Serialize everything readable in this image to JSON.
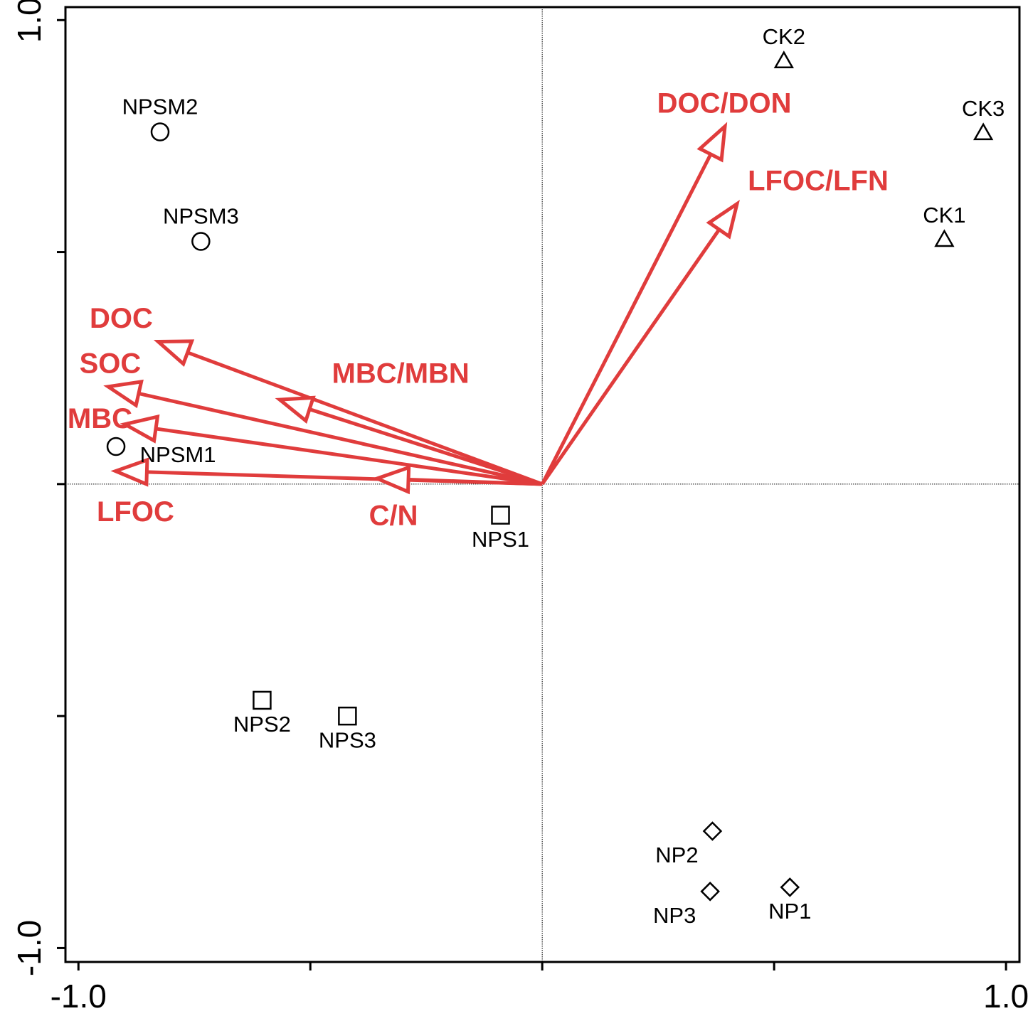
{
  "chart_data": {
    "type": "biplot",
    "xlim": [
      -1.028,
      1.029
    ],
    "ylim": [
      -1.03,
      1.028
    ],
    "xticks": [
      {
        "value": -1,
        "label": "-1.0"
      },
      {
        "value": -0.5,
        "label": null
      },
      {
        "value": 0,
        "label": null
      },
      {
        "value": 0.5,
        "label": null
      },
      {
        "value": 1,
        "label": "1.0"
      }
    ],
    "yticks": [
      {
        "value": -1,
        "label": "-1.0"
      },
      {
        "value": -0.5,
        "label": null
      },
      {
        "value": 0,
        "label": null
      },
      {
        "value": 0.5,
        "label": null
      },
      {
        "value": 1,
        "label": "1.0"
      }
    ],
    "arrow_color": "#e03c3c",
    "point_color": "#000000",
    "points": [
      {
        "label": "CK2",
        "x": 0.521,
        "y": 0.912,
        "marker": "triangle"
      },
      {
        "label": "CK3",
        "x": 0.951,
        "y": 0.757,
        "marker": "triangle"
      },
      {
        "label": "CK1",
        "x": 0.867,
        "y": 0.527,
        "marker": "triangle"
      },
      {
        "label": "NPSM2",
        "x": -0.824,
        "y": 0.759,
        "marker": "circle"
      },
      {
        "label": "NPSM3",
        "x": -0.736,
        "y": 0.523,
        "marker": "circle"
      },
      {
        "label": "NPSM1",
        "x": -0.919,
        "y": 0.081,
        "marker": "circle"
      },
      {
        "label": "NPS1",
        "x": -0.09,
        "y": -0.067,
        "marker": "square"
      },
      {
        "label": "NPS2",
        "x": -0.604,
        "y": -0.466,
        "marker": "square"
      },
      {
        "label": "NPS3",
        "x": -0.42,
        "y": -0.5,
        "marker": "square"
      },
      {
        "label": "NP2",
        "x": 0.367,
        "y": -0.748,
        "marker": "diamond"
      },
      {
        "label": "NP3",
        "x": 0.362,
        "y": -0.878,
        "marker": "diamond"
      },
      {
        "label": "NP1",
        "x": 0.534,
        "y": -0.869,
        "marker": "diamond"
      }
    ],
    "arrows": [
      {
        "label": "DOC/DON",
        "x": 0.394,
        "y": 0.771
      },
      {
        "label": "LFOC/LFN",
        "x": 0.42,
        "y": 0.604
      },
      {
        "label": "DOC",
        "x": -0.828,
        "y": 0.307
      },
      {
        "label": "SOC",
        "x": -0.936,
        "y": 0.21
      },
      {
        "label": "MBC/MBN",
        "x": -0.566,
        "y": 0.182
      },
      {
        "label": "MBC",
        "x": -0.9,
        "y": 0.129
      },
      {
        "label": "LFOC",
        "x": -0.92,
        "y": 0.028
      },
      {
        "label": "C/N",
        "x": -0.356,
        "y": 0.012
      }
    ]
  }
}
